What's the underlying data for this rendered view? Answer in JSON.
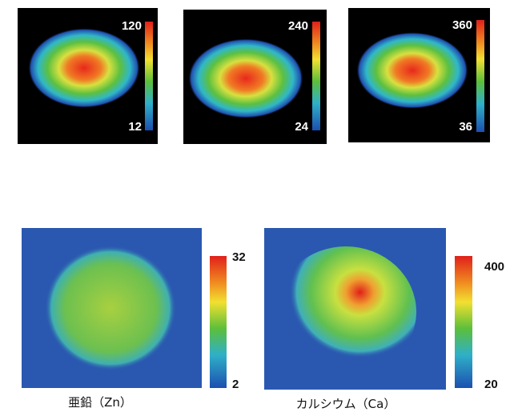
{
  "panels": [
    {
      "colorbar": {
        "max": 120,
        "min": 12
      }
    },
    {
      "colorbar": {
        "max": 240,
        "min": 24
      }
    },
    {
      "colorbar": {
        "max": 360,
        "min": 36
      }
    },
    {
      "colorbar": {
        "max": 32,
        "min": 2
      },
      "caption": "亜鉛（Zn）"
    },
    {
      "colorbar": {
        "max": 400,
        "min": 20
      },
      "caption": "カルシウム（Ca）"
    }
  ]
}
